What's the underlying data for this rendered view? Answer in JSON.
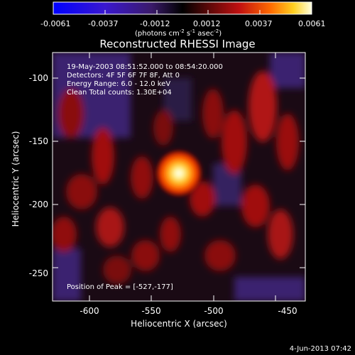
{
  "colorbar": {
    "ticks": [
      "-0.0061",
      "-0.0037",
      "-0.0012",
      "0.0012",
      "0.0037",
      "0.0061"
    ],
    "unit_label": "(photons cm-2 s-1 asec-2)",
    "unit_base": "(photons cm",
    "unit_exp1": "-2",
    "unit_mid": " s",
    "unit_exp2": "-1",
    "unit_mid2": " asec",
    "unit_exp3": "-2",
    "unit_end": ")"
  },
  "title": "Reconstructed RHESSI Image",
  "info": {
    "line1": "19-May-2003 08:51:52.000 to 08:54:20.000",
    "line2": "Detectors: 4F 5F 6F 7F 8F, Att 0",
    "line3": "Energy Range: 6.0 - 12.0 keV",
    "line4": "Clean    Total counts: 1.30E+04"
  },
  "peak_text": "Position of Peak = [-527,-177]",
  "x_axis": {
    "label": "Heliocentric X (arcsec)",
    "ticks": [
      "-600",
      "-550",
      "-500",
      "-450"
    ]
  },
  "y_axis": {
    "label": "Heliocentric Y (arcsec)",
    "ticks": [
      "-100",
      "-150",
      "-200",
      "-250"
    ]
  },
  "footer_date": "4-Jun-2013 07:42",
  "colors": {
    "negative": "#1a00ff",
    "neutral": "#000000",
    "mid": "#b01010",
    "peak": "#ffffff"
  }
}
